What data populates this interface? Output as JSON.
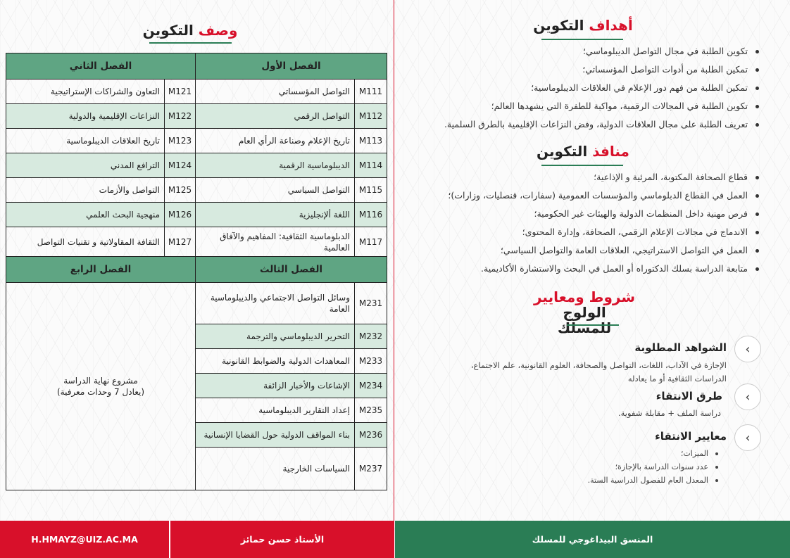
{
  "left": {
    "title": {
      "accent": "وصف",
      "rest": "التكوين"
    },
    "sem1": "الفصل الأول",
    "sem2": "الفصل الثاني",
    "sem3": "الفصل الثالث",
    "sem4": "الفصل الرابع",
    "s1": [
      {
        "code": "M111",
        "name": "التواصل المؤسساتي"
      },
      {
        "code": "M112",
        "name": "التواصل الرقمي"
      },
      {
        "code": "M113",
        "name": "تاريخ الإعلام وصناعة الرأي العام"
      },
      {
        "code": "M114",
        "name": "الديبلوماسية الرقمية"
      },
      {
        "code": "M115",
        "name": "التواصل السياسي"
      },
      {
        "code": "M116",
        "name": "اللغة ألإنجليزية"
      },
      {
        "code": "M117",
        "name": "الدبلوماسية الثقافية: المفاهيم والآفاق العالمية"
      }
    ],
    "s2": [
      {
        "code": "M121",
        "name": "التعاون والشراكات الإستراتيجية"
      },
      {
        "code": "M122",
        "name": "النزاعات الإقليمية والدولية"
      },
      {
        "code": "M123",
        "name": "تاريخ العلاقات الديبلوماسية"
      },
      {
        "code": "M124",
        "name": "الترافع المدني"
      },
      {
        "code": "M125",
        "name": "التواصل والأزمات"
      },
      {
        "code": "M126",
        "name": "منهجية البحث العلمي"
      },
      {
        "code": "M127",
        "name": "الثقافة المقاولاتية و تقنيات التواصل"
      }
    ],
    "s3": [
      {
        "code": "M231",
        "name": "وسائل التواصل الاجتماعي والديبلوماسية العامة"
      },
      {
        "code": "M232",
        "name": "التحرير الديبلوماسي والترجمة"
      },
      {
        "code": "M233",
        "name": "المعاهدات الدولية والضوابط القانونية"
      },
      {
        "code": "M234",
        "name": "الإشاعات والأخبار الزائفة"
      },
      {
        "code": "M235",
        "name": "إعداد التقارير الديبلوماسية"
      },
      {
        "code": "M236",
        "name": "بناء المواقف الدولية حول القضايا الإنسانية"
      },
      {
        "code": "M237",
        "name": "السياسات الخارجية"
      }
    ],
    "s4": {
      "line1": "مشروع نهاية الدراسة",
      "line2": "(يعادل 7 وحدات معرفية)"
    }
  },
  "right": {
    "goals": {
      "accent": "أهداف",
      "rest": "التكوين",
      "items": [
        "تكوين الطلبة في مجال التواصل الديبلوماسي؛",
        "تمكين الطلبة من أدوات التواصل المؤسساتي؛",
        "تمكين الطلبة من فهم دور الإعلام في العلاقات الديبلوماسية؛",
        "تكوين الطلبة في المجالات الرقمية، مواكبة للطفرة التي يشهدها العالم؛",
        "تعريف الطلبة على مجال العلاقات الدولية، وفض النزاعات الإقليمية بالطرق السلمية."
      ]
    },
    "outlets": {
      "accent": "منافذ",
      "rest": "التكوين",
      "items": [
        "قطاع الصحافة المكتوبة، المرئية و الإذاعية؛",
        "العمل في القطاع الدبلوماسي والمؤسسات العمومية (سفارات، قنصليات، وزارات)؛",
        "فرص مهنية داخل المنظمات الدولية والهيئات غير الحكومية؛",
        "الاندماج في مجالات الإعلام الرقمي، الصحافة، وإدارة المحتوى؛",
        "العمل في التواصل الاستراتيجي، العلاقات العامة والتواصل السياسي؛",
        "متابعة الدراسة بسلك الدكتوراه أو العمل في البحث والاستشارة الأكاديمية."
      ]
    },
    "admission": {
      "accent": "شروط ومعايير",
      "rest": "الولوج",
      "line2": "للمسلك",
      "diplomas": {
        "title": "الشواهد المطلوبة",
        "line1": "الإجازة في الآداب، اللغات، التواصل والصحافة، العلوم القانونية، علم الاجتماع،",
        "line2": "الدراسات الثقافية أو ما يعادله"
      },
      "selection": {
        "title": "طرق الانتقاء",
        "text": "دراسة الملف + مقابلة شفوية."
      },
      "criteria": {
        "title": "معايير الانتقاء",
        "items": [
          "الميزات؛",
          "عدد سنوات الدراسة بالإجازة؛",
          "المعدل العام للفصول الدراسية الستة."
        ]
      }
    }
  },
  "footer": {
    "email": "H.HMAYZ@UIZ.AC.MA",
    "professor": "الأستاذ  حسن حمائز",
    "coordinator": "المنسق البيداغوجي للمسلك"
  },
  "colors": {
    "red": "#d8102a",
    "green": "#2a7d55",
    "table_header": "#5fa583",
    "row_alt": "#d7eadf"
  },
  "icons": {
    "accordion": "chevron-left-icon"
  }
}
